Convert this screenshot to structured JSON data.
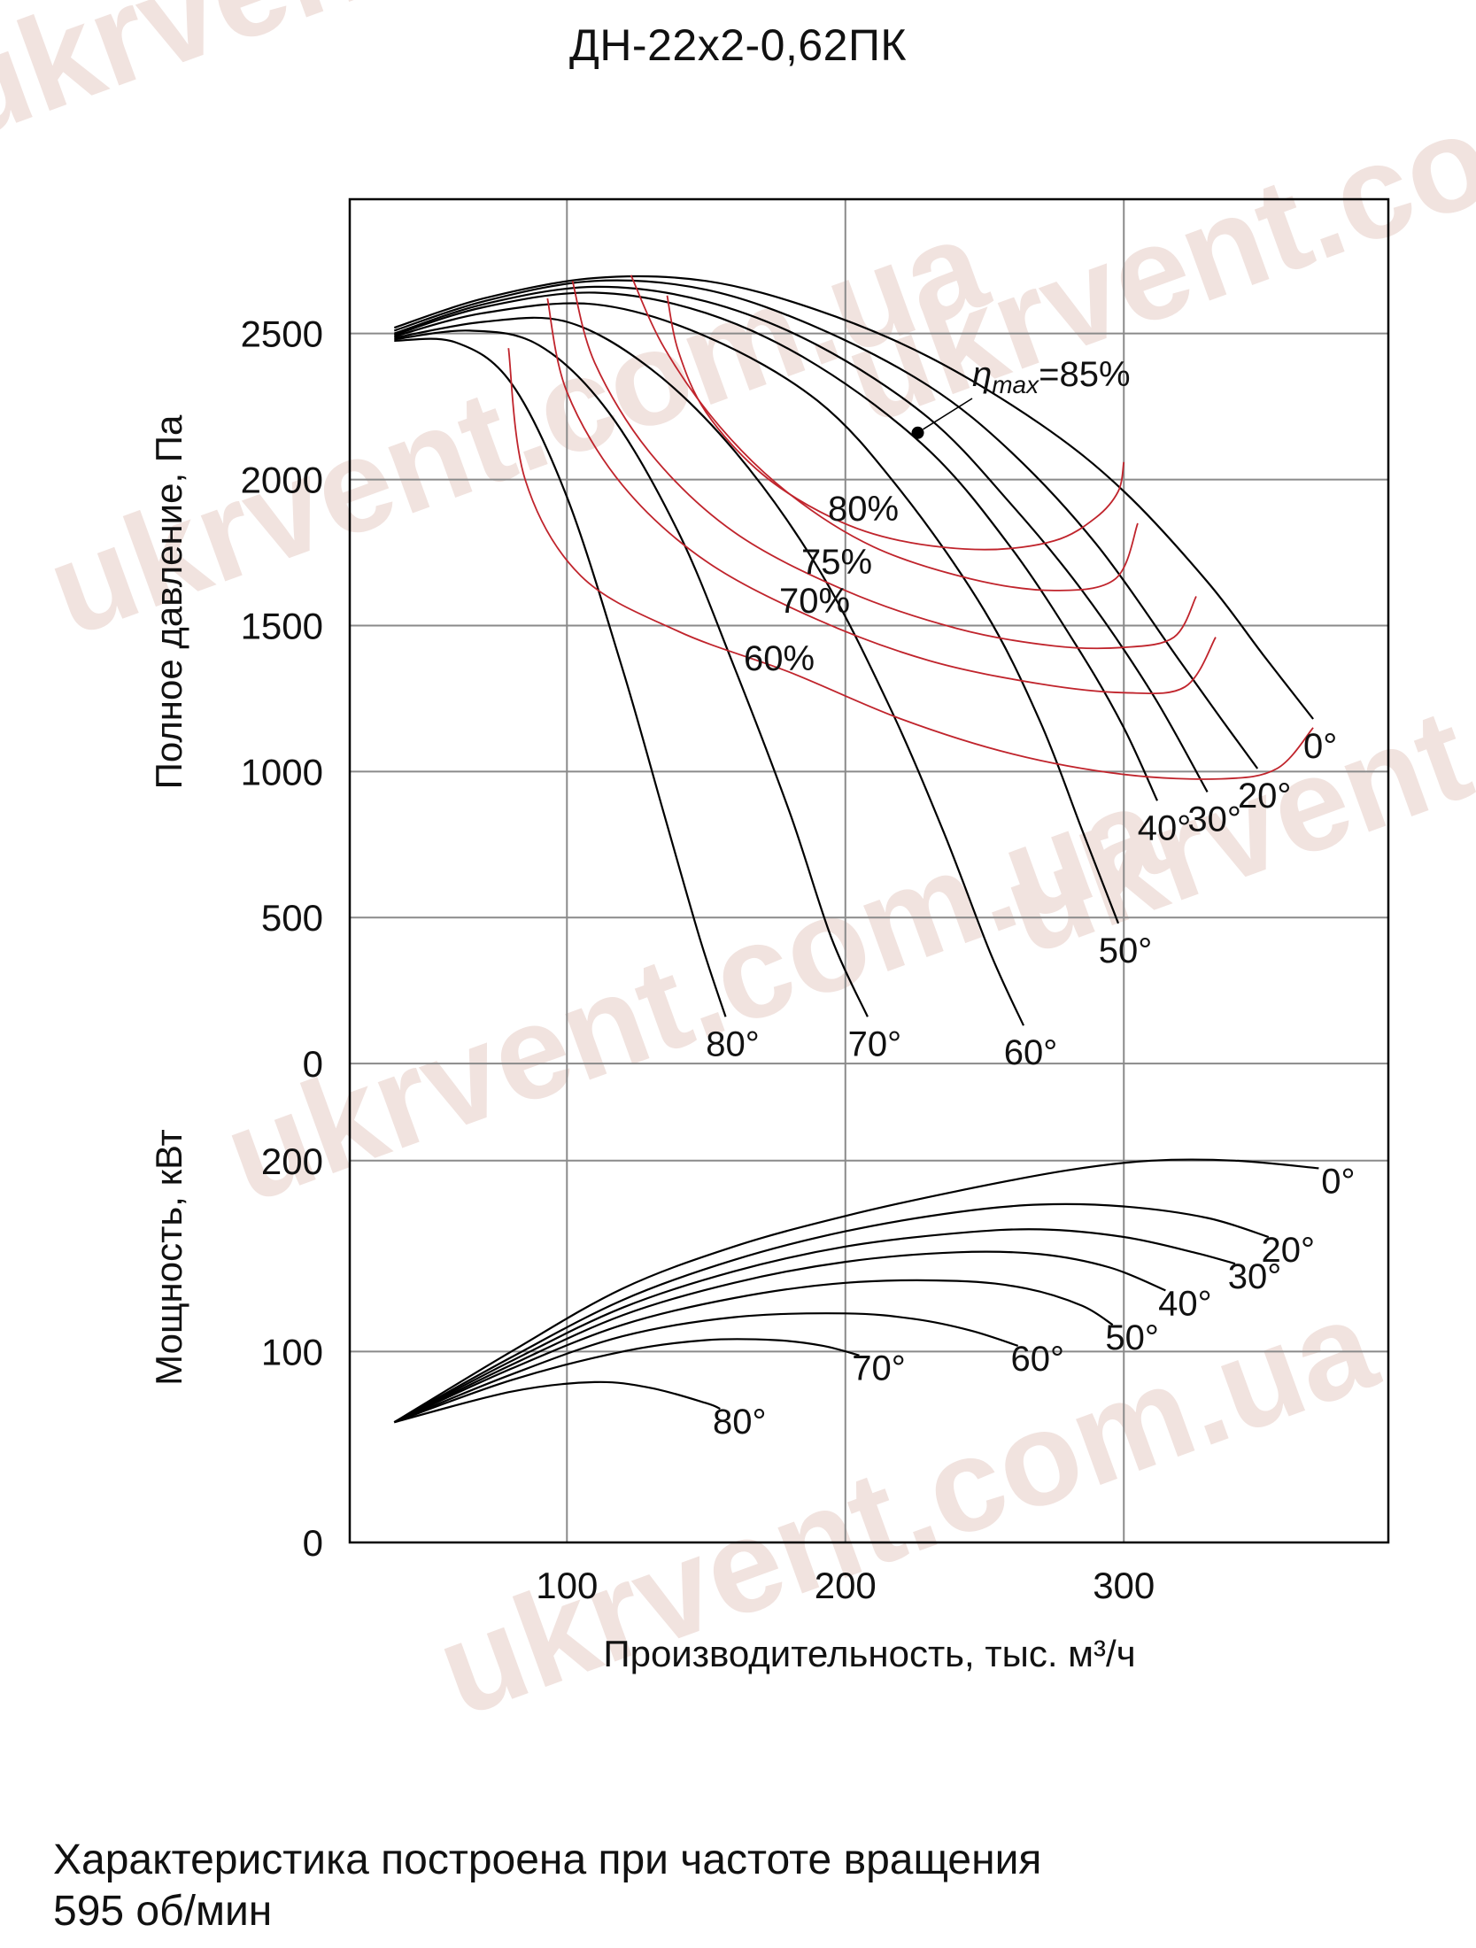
{
  "title": "ДН-22х2-0,62ПК",
  "caption_line1": "Характеристика построена при частоте вращения",
  "caption_line2": "595 об/мин",
  "watermark": "ukrvent.com.ua",
  "colors": {
    "axis": "#000000",
    "grid": "#8a8a8a",
    "curve": "#000000",
    "efficiency": "#c0242c"
  },
  "chart_data": [
    {
      "type": "line",
      "title": "ДН-22х2-0,62ПК",
      "xlabel": "Производительность, тыс. м³/ч",
      "ylabel": "Полное давление, Па",
      "xlim": [
        22,
        395
      ],
      "ylim": [
        -300,
        2960
      ],
      "xticks": [
        100,
        200,
        300
      ],
      "yticks": [
        0,
        500,
        1000,
        1500,
        2000,
        2500
      ],
      "grid": true,
      "series": [
        {
          "name": "0°",
          "x": [
            38,
            70,
            110,
            150,
            190,
            230,
            270,
            300,
            330,
            350,
            368
          ],
          "y": [
            2520,
            2620,
            2690,
            2680,
            2580,
            2420,
            2190,
            1960,
            1650,
            1400,
            1180
          ]
        },
        {
          "name": "20°",
          "x": [
            38,
            70,
            110,
            150,
            190,
            230,
            260,
            290,
            320,
            335,
            348
          ],
          "y": [
            2510,
            2610,
            2680,
            2650,
            2520,
            2320,
            2090,
            1780,
            1380,
            1180,
            1010
          ]
        },
        {
          "name": "30°",
          "x": [
            38,
            70,
            110,
            150,
            190,
            230,
            260,
            285,
            310,
            330
          ],
          "y": [
            2500,
            2600,
            2660,
            2610,
            2460,
            2210,
            1910,
            1620,
            1270,
            930
          ]
        },
        {
          "name": "40°",
          "x": [
            38,
            70,
            110,
            150,
            190,
            230,
            260,
            285,
            300,
            312
          ],
          "y": [
            2495,
            2590,
            2640,
            2570,
            2390,
            2100,
            1760,
            1400,
            1150,
            900
          ]
        },
        {
          "name": "50°",
          "x": [
            38,
            70,
            110,
            150,
            190,
            220,
            250,
            270,
            285,
            298
          ],
          "y": [
            2490,
            2570,
            2600,
            2490,
            2270,
            1960,
            1550,
            1170,
            800,
            480
          ]
        },
        {
          "name": "60°",
          "x": [
            38,
            70,
            100,
            130,
            160,
            190,
            215,
            235,
            252,
            264
          ],
          "y": [
            2485,
            2540,
            2540,
            2380,
            2100,
            1700,
            1240,
            800,
            380,
            130
          ]
        },
        {
          "name": "70°",
          "x": [
            38,
            65,
            90,
            115,
            140,
            160,
            180,
            195,
            208
          ],
          "y": [
            2480,
            2510,
            2460,
            2230,
            1820,
            1360,
            860,
            430,
            160
          ]
        },
        {
          "name": "80°",
          "x": [
            38,
            60,
            80,
            100,
            120,
            135,
            148,
            157
          ],
          "y": [
            2475,
            2470,
            2330,
            1940,
            1350,
            850,
            420,
            160
          ]
        }
      ],
      "efficiency_curves": [
        {
          "label": "60%",
          "x": [
            79,
            85,
            105,
            140,
            180,
            220,
            260,
            300,
            335,
            355,
            368
          ],
          "y": [
            2450,
            2000,
            1670,
            1480,
            1340,
            1180,
            1060,
            990,
            975,
            1010,
            1150
          ]
        },
        {
          "label": "70%",
          "x": [
            93,
            100,
            120,
            150,
            190,
            230,
            270,
            300,
            322,
            333
          ],
          "y": [
            2620,
            2300,
            1980,
            1720,
            1520,
            1380,
            1300,
            1270,
            1290,
            1460
          ]
        },
        {
          "label": "75%",
          "x": [
            102,
            110,
            130,
            160,
            200,
            240,
            275,
            300,
            318,
            326
          ],
          "y": [
            2680,
            2400,
            2090,
            1820,
            1620,
            1490,
            1430,
            1425,
            1460,
            1600
          ]
        },
        {
          "label": "80%",
          "x": [
            123,
            135,
            155,
            180,
            210,
            245,
            275,
            297,
            305
          ],
          "y": [
            2700,
            2450,
            2180,
            1950,
            1770,
            1660,
            1620,
            1660,
            1850
          ]
        },
        {
          "label": "85%",
          "x": [
            136,
            140,
            150,
            170,
            195,
            220,
            250,
            275,
            290,
            298,
            300
          ],
          "y": [
            2630,
            2440,
            2230,
            2020,
            1870,
            1790,
            1760,
            1790,
            1870,
            1960,
            2060
          ]
        }
      ],
      "efficiency_labels": [
        "80%",
        "75%",
        "70%",
        "60%"
      ],
      "eta_max": {
        "label_prefix": "η",
        "label_sub": "max",
        "label_suffix": "=85%",
        "x": 226,
        "y": 2160
      }
    },
    {
      "type": "line",
      "xlabel": "Производительность, тыс. м³/ч",
      "ylabel": "Мощность, кВт",
      "xlim": [
        22,
        395
      ],
      "ylim": [
        0,
        205
      ],
      "xticks": [
        100,
        200,
        300
      ],
      "yticks": [
        0,
        100,
        200
      ],
      "grid": true,
      "series": [
        {
          "name": "0°",
          "x": [
            38,
            80,
            120,
            160,
            200,
            240,
            280,
            310,
            340,
            370
          ],
          "y": [
            63,
            100,
            133,
            155,
            171,
            184,
            195,
            200,
            200,
            196
          ]
        },
        {
          "name": "20°",
          "x": [
            38,
            80,
            120,
            160,
            200,
            240,
            270,
            300,
            330,
            352
          ],
          "y": [
            63,
            97,
            127,
            148,
            163,
            173,
            177,
            176,
            170,
            160
          ]
        },
        {
          "name": "30°",
          "x": [
            38,
            80,
            120,
            160,
            200,
            240,
            270,
            300,
            325,
            340
          ],
          "y": [
            63,
            95,
            123,
            142,
            155,
            162,
            164,
            160,
            152,
            146
          ]
        },
        {
          "name": "40°",
          "x": [
            38,
            80,
            120,
            160,
            200,
            240,
            270,
            295,
            315
          ],
          "y": [
            63,
            93,
            119,
            136,
            147,
            152,
            151,
            144,
            132
          ]
        },
        {
          "name": "50°",
          "x": [
            38,
            80,
            120,
            160,
            200,
            240,
            265,
            285,
            296
          ],
          "y": [
            63,
            91,
            114,
            128,
            136,
            137,
            133,
            124,
            114
          ]
        },
        {
          "name": "60°",
          "x": [
            38,
            80,
            120,
            160,
            200,
            225,
            245,
            262
          ],
          "y": [
            63,
            88,
            108,
            118,
            120,
            117,
            111,
            103
          ]
        },
        {
          "name": "70°",
          "x": [
            38,
            80,
            120,
            150,
            175,
            192,
            205
          ],
          "y": [
            63,
            85,
            100,
            106,
            106,
            103,
            98
          ]
        },
        {
          "name": "80°",
          "x": [
            38,
            80,
            110,
            130,
            150,
            155
          ],
          "y": [
            63,
            79,
            84,
            81,
            73,
            70
          ]
        }
      ]
    }
  ]
}
